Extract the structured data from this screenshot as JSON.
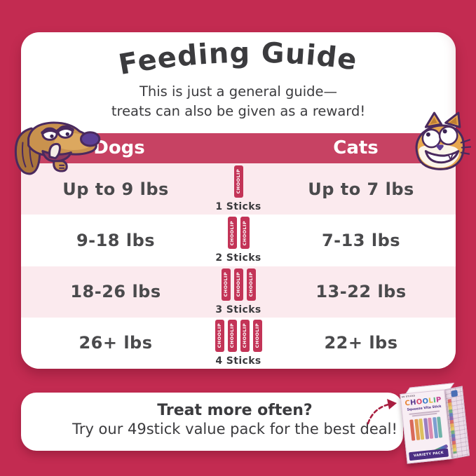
{
  "colors": {
    "background": "#C32B51",
    "band": "#C74263",
    "stick": "#C33457",
    "row_pink": "#FBEAEE",
    "decor_pink": "#F8DBE6",
    "text_dark": "#3B3B3E",
    "text_gray": "#4A4A4C",
    "arrow": "#A81E40",
    "box_purple": "#4B2E83"
  },
  "icons": {
    "heart_glyph": "♥"
  },
  "header": {
    "title": "Feeding Guide",
    "subtitle_line1": "This is just a general guide—",
    "subtitle_line2": "treats can also be given as a reward!"
  },
  "table": {
    "columns": {
      "dogs": "Dogs",
      "cats": "Cats"
    },
    "stick_brand": "CHOOLIP",
    "rows": [
      {
        "dogs": "Up to 9 lbs",
        "sticks": 1,
        "sticks_label": "1 Sticks",
        "cats": "Up to 7 lbs"
      },
      {
        "dogs": "9-18 lbs",
        "sticks": 2,
        "sticks_label": "2 Sticks",
        "cats": "7-13 lbs"
      },
      {
        "dogs": "18-26 lbs",
        "sticks": 3,
        "sticks_label": "3 Sticks",
        "cats": "13-22 lbs"
      },
      {
        "dogs": "26+ lbs",
        "sticks": 4,
        "sticks_label": "4 Sticks",
        "cats": "22+ lbs"
      }
    ]
  },
  "footer": {
    "line1": "Treat more often?",
    "line2": "Try our 49stick value pack for the best deal!"
  },
  "product_box": {
    "count_label": "49 STICKS",
    "brand": "CHOOLIP",
    "brand_top": "CHOOLIP",
    "subtitle": "Squeeze Vita Stick",
    "banner": "VARIETY PACK",
    "logo_colors": [
      "#E8883B",
      "#5B3A8E",
      "#D9486B",
      "#3B7BC8",
      "#E0B83E",
      "#4CAF7D",
      "#C23B8E"
    ],
    "stick_colors": [
      "#D96A5A",
      "#E09A52",
      "#DDC05E",
      "#9B7FC0",
      "#D98AB0",
      "#7D9FD0",
      "#6FB3A8"
    ]
  }
}
